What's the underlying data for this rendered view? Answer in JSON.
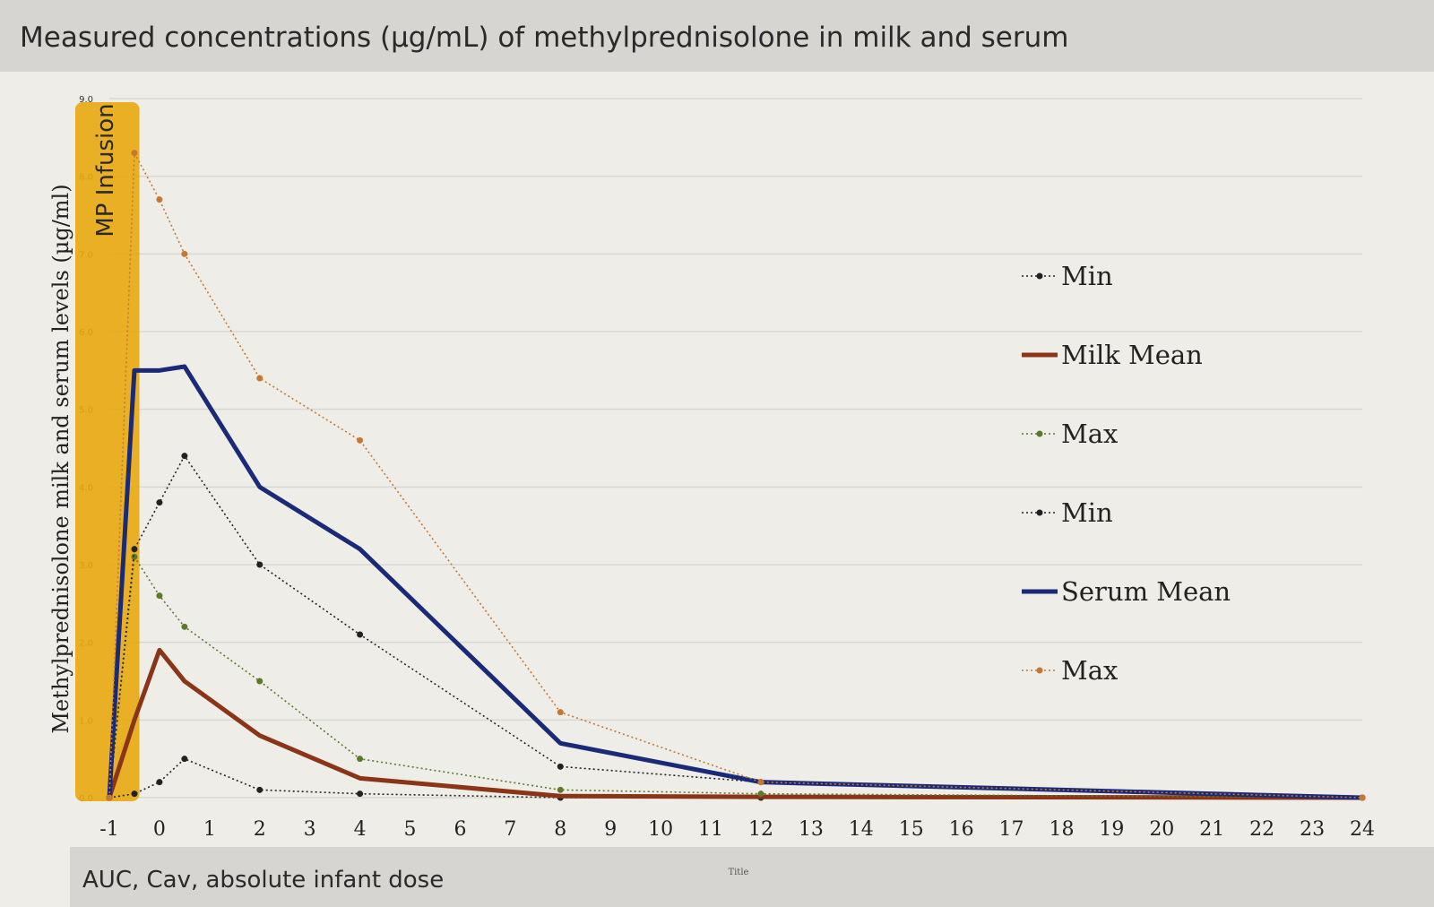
{
  "chart_data": {
    "type": "line",
    "title": "Measured concentrations (µg/mL) of methylprednisolone in milk and serum",
    "y_label": "Methylprednisolone milk and serum levels (µg/ml)",
    "x_label": "Title",
    "footer_text": "AUC, Cav, absolute infant dose",
    "band": {
      "label": "MP Infusion",
      "x": [
        -1,
        -0.4
      ],
      "color": "#e8a90f"
    },
    "x": [
      -1,
      -0.5,
      0,
      0.5,
      2,
      4,
      8,
      12,
      24
    ],
    "series": [
      {
        "name": "Min",
        "color": "#222222",
        "style": "dotted",
        "values": [
          0,
          0.05,
          0.2,
          0.5,
          0.1,
          0.05,
          0,
          0,
          0
        ]
      },
      {
        "name": "Milk Mean",
        "color": "#8b3518",
        "style": "solid",
        "values": [
          0,
          1.0,
          1.9,
          1.5,
          0.8,
          0.25,
          0.02,
          0.01,
          0
        ]
      },
      {
        "name": "Max",
        "color": "#5b7a2c",
        "style": "dotted",
        "values": [
          0,
          3.1,
          2.6,
          2.2,
          1.5,
          0.5,
          0.1,
          0.05,
          0
        ]
      },
      {
        "name": "Min",
        "color": "#222222",
        "style": "dotted",
        "values": [
          0,
          3.2,
          3.8,
          4.4,
          3.0,
          2.1,
          0.4,
          0.2,
          0
        ]
      },
      {
        "name": "Serum Mean",
        "color": "#1b2a78",
        "style": "solid",
        "values": [
          0,
          5.5,
          5.5,
          5.55,
          4.0,
          3.2,
          0.7,
          0.2,
          0
        ]
      },
      {
        "name": "Max",
        "color": "#c8772e",
        "style": "dotted",
        "values": [
          0,
          8.3,
          7.7,
          7.0,
          5.4,
          4.6,
          1.1,
          0.2,
          0
        ]
      }
    ],
    "xlim": [
      -1,
      24
    ],
    "xticks": [
      -1,
      0,
      1,
      2,
      3,
      4,
      5,
      6,
      7,
      8,
      9,
      10,
      11,
      12,
      13,
      14,
      15,
      16,
      17,
      18,
      19,
      20,
      21,
      22,
      23,
      24
    ],
    "ylim": [
      0,
      9
    ],
    "yticks": [
      {
        "value": 0,
        "label": "0.0"
      },
      {
        "value": 1,
        "label": "1.0"
      },
      {
        "value": 2,
        "label": "2.0"
      },
      {
        "value": 3,
        "label": "3.0"
      },
      {
        "value": 4,
        "label": "4.0"
      },
      {
        "value": 5,
        "label": "5.0"
      },
      {
        "value": 6,
        "label": "6.0"
      },
      {
        "value": 7,
        "label": "7.0"
      },
      {
        "value": 8,
        "label": "8.0"
      },
      {
        "value": 9,
        "label": "9.0"
      }
    ],
    "grid": true,
    "legend": "right"
  }
}
